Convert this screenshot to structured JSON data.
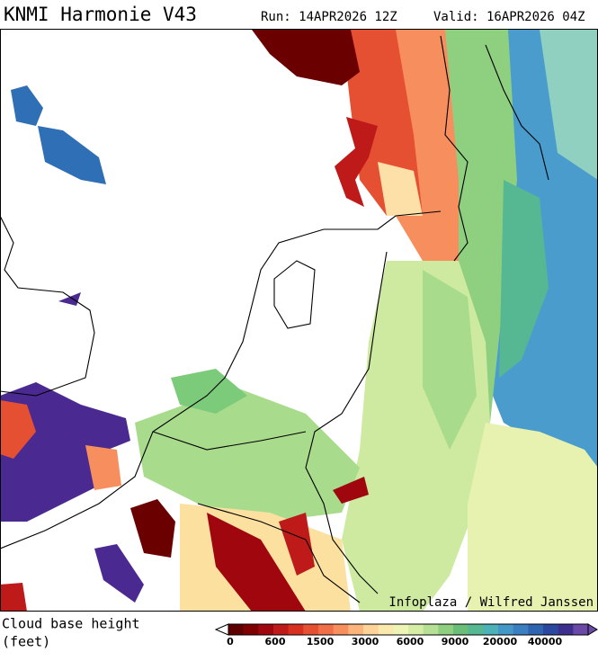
{
  "header": {
    "title": "KNMI Harmonie V43",
    "run": "Run: 14APR2026 12Z",
    "valid": "Valid: 16APR2026 04Z"
  },
  "credit": "Infoplaza / Wilfred Janssen",
  "legend": {
    "label_line1": "Cloud base height",
    "label_line2": "(feet)",
    "ticks": [
      0,
      600,
      1500,
      3000,
      6000,
      9000,
      20000,
      40000
    ],
    "colors": [
      "#5e0000",
      "#7f0000",
      "#a0060e",
      "#be1a1a",
      "#d7301f",
      "#e65032",
      "#f06e48",
      "#f78e5e",
      "#fbb47c",
      "#fdd39a",
      "#fbe8ac",
      "#eef4b6",
      "#d6eda6",
      "#b6e096",
      "#8fd080",
      "#6bbe78",
      "#56b893",
      "#4cb2b8",
      "#4498c8",
      "#3a7fc0",
      "#2f64b0",
      "#2b48a0",
      "#3d2f8e",
      "#6a4aa6"
    ]
  }
}
